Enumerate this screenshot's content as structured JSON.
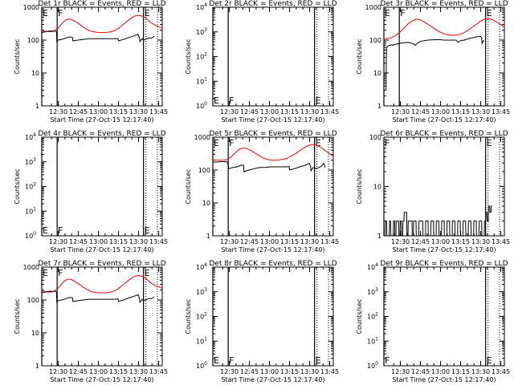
{
  "figure": {
    "xlabel": "Start Time (27-Oct-15 12:17:40)",
    "ylabel": "Counts/sec",
    "xticks": [
      "12:30",
      "12:45",
      "13:00",
      "13:15",
      "13:30",
      "13:45"
    ],
    "colors": {
      "events": "#000000",
      "lld": "#ff0000",
      "background": "#ffffff"
    }
  },
  "chart_data": [
    {
      "type": "line",
      "title": "Det 1r BLACK = Events, RED = LLD",
      "xrange_min": [
        0,
        90
      ],
      "ylim": [
        1,
        1000
      ],
      "yscale": "log",
      "yticks": [
        "1",
        "10",
        "100",
        "1000"
      ],
      "markers": [
        {
          "x": 0,
          "label": "E"
        },
        {
          "x": 11.5,
          "label": "F"
        },
        {
          "x": 76,
          "label": "E"
        }
      ],
      "events": {
        "x": [
          0,
          3,
          6,
          8,
          10,
          11,
          11.3,
          12,
          15,
          18,
          21,
          23,
          23.3,
          27,
          31,
          35,
          39,
          43,
          47,
          51,
          55,
          57,
          57.3,
          61,
          65,
          69,
          72,
          73,
          73.3,
          75,
          76,
          78,
          80,
          82,
          84
        ],
        "y": [
          170,
          180,
          190,
          185,
          190,
          180,
          85,
          100,
          105,
          115,
          125,
          120,
          95,
          100,
          105,
          110,
          110,
          110,
          110,
          110,
          110,
          112,
          95,
          105,
          120,
          135,
          150,
          115,
          90,
          110,
          100,
          108,
          115,
          115,
          130
        ]
      },
      "lld": {
        "x": [
          0,
          5,
          8,
          10,
          12,
          14,
          16,
          18,
          20,
          22,
          25,
          28,
          31,
          34,
          37,
          40,
          43,
          46,
          49,
          52,
          55,
          58,
          61,
          64,
          67,
          70,
          73,
          76,
          79,
          82,
          85,
          88,
          90
        ],
        "y": [
          190,
          180,
          180,
          200,
          230,
          280,
          350,
          410,
          440,
          430,
          370,
          310,
          250,
          210,
          185,
          175,
          170,
          170,
          172,
          180,
          200,
          240,
          300,
          380,
          470,
          550,
          560,
          520,
          420,
          330,
          280,
          250,
          230
        ]
      }
    },
    {
      "type": "line",
      "title": "Det 2r BLACK = Events, RED = LLD",
      "xrange_min": [
        0,
        90
      ],
      "ylim": [
        1,
        10000
      ],
      "yscale": "log",
      "yticks": [
        "10^0",
        "10^1",
        "10^2",
        "10^3",
        "10^4"
      ],
      "markers": [
        {
          "x": 0,
          "label": "E"
        },
        {
          "x": 11.5,
          "label": "F"
        },
        {
          "x": 76,
          "label": "E"
        }
      ]
    },
    {
      "type": "line",
      "title": "Det 3r BLACK = Events, RED = LLD",
      "xrange_min": [
        0,
        90
      ],
      "ylim": [
        1,
        1000
      ],
      "yscale": "log",
      "yticks": [
        "1",
        "10",
        "100",
        "1000"
      ],
      "markers": [
        {
          "x": 0,
          "label": "E"
        },
        {
          "x": 11.5,
          "label": "F"
        },
        {
          "x": 76,
          "label": "E"
        }
      ],
      "events": {
        "x": [
          1.6,
          1.8,
          2,
          3,
          4,
          5,
          6,
          6.5,
          8,
          10,
          12,
          14,
          16,
          18,
          20,
          22,
          23.3,
          25,
          27,
          30,
          33,
          36,
          39,
          42,
          45,
          48,
          51,
          54,
          55.3,
          57,
          60,
          63,
          66,
          69,
          72,
          73,
          73.3,
          74.5
        ],
        "y": [
          3,
          30,
          60,
          65,
          70,
          70,
          72,
          70,
          74,
          76,
          80,
          82,
          84,
          85,
          82,
          78,
          70,
          80,
          90,
          96,
          100,
          102,
          103,
          103,
          100,
          100,
          100,
          100,
          85,
          95,
          100,
          110,
          118,
          125,
          130,
          120,
          80,
          100
        ]
      },
      "lld": {
        "x": [
          0,
          3,
          6,
          9,
          12,
          15,
          18,
          21,
          24,
          27,
          30,
          33,
          36,
          39,
          42,
          45,
          48,
          51,
          54,
          57,
          60,
          63,
          66,
          69,
          72,
          75,
          78,
          81,
          84,
          87,
          90
        ],
        "y": [
          110,
          112,
          120,
          140,
          175,
          230,
          310,
          380,
          430,
          420,
          360,
          300,
          250,
          205,
          175,
          155,
          145,
          140,
          142,
          150,
          170,
          200,
          245,
          300,
          370,
          430,
          450,
          420,
          360,
          300,
          250
        ]
      }
    },
    {
      "type": "line",
      "title": "Det 4r BLACK = Events, RED = LLD",
      "xrange_min": [
        0,
        90
      ],
      "ylim": [
        1,
        10000
      ],
      "yscale": "log",
      "yticks": [
        "10^0",
        "10^1",
        "10^2",
        "10^3",
        "10^4"
      ],
      "markers": [
        {
          "x": 0,
          "label": "E"
        },
        {
          "x": 11.5,
          "label": "F"
        },
        {
          "x": 76,
          "label": "E"
        }
      ]
    },
    {
      "type": "line",
      "title": "Det 5r BLACK = Events, RED = LLD",
      "xrange_min": [
        0,
        90
      ],
      "ylim": [
        1,
        1000
      ],
      "yscale": "log",
      "yticks": [
        "1",
        "10",
        "100",
        "1000"
      ],
      "markers": [
        {
          "x": 0,
          "label": "E"
        },
        {
          "x": 11.5,
          "label": "F"
        },
        {
          "x": 76,
          "label": "E"
        }
      ],
      "events": {
        "x": [
          0,
          3,
          6,
          9,
          11,
          11.3,
          12,
          15,
          18,
          21,
          23,
          23.3,
          27,
          31,
          35,
          39,
          43,
          47,
          51,
          55,
          57,
          57.3,
          61,
          65,
          69,
          72,
          73,
          73.3,
          75,
          77,
          79,
          81,
          83,
          84
        ],
        "y": [
          175,
          175,
          180,
          180,
          175,
          150,
          110,
          120,
          125,
          140,
          140,
          90,
          100,
          110,
          120,
          120,
          125,
          125,
          125,
          125,
          128,
          100,
          110,
          125,
          140,
          160,
          130,
          95,
          120,
          110,
          118,
          130,
          160,
          120
        ]
      },
      "lld": {
        "x": [
          0,
          4,
          8,
          11,
          14,
          17,
          20,
          23,
          26,
          29,
          32,
          35,
          38,
          41,
          44,
          47,
          50,
          53,
          56,
          59,
          62,
          65,
          68,
          71,
          74,
          77,
          80,
          83,
          86,
          90
        ],
        "y": [
          205,
          200,
          198,
          210,
          260,
          340,
          430,
          470,
          440,
          380,
          320,
          270,
          230,
          210,
          200,
          200,
          205,
          215,
          235,
          270,
          320,
          390,
          470,
          550,
          600,
          580,
          510,
          420,
          340,
          260
        ]
      }
    },
    {
      "type": "line",
      "title": "Det 6r BLACK = Events, RED = LLD",
      "xrange_min": [
        0,
        90
      ],
      "ylim": [
        1,
        100
      ],
      "yscale": "log",
      "yticks": [
        "1",
        "10",
        "100"
      ],
      "markers": [
        {
          "x": 0,
          "label": "F"
        },
        {
          "x": 76,
          "label": "E"
        }
      ],
      "events": {
        "x": [
          0,
          1,
          1.2,
          2,
          2.2,
          4,
          4.2,
          5,
          5.2,
          7,
          7.2,
          8,
          8.2,
          9,
          9.2,
          11,
          11.2,
          12,
          12.2,
          13,
          13.2,
          14,
          14.2,
          15,
          15.2,
          17,
          17.2,
          18,
          18.2,
          21,
          21.2,
          22,
          22.2,
          24,
          24.2,
          26,
          26.2,
          29,
          29.2,
          31,
          31.2,
          33,
          33.2,
          35,
          35.2,
          37,
          37.2,
          39,
          39.2,
          41,
          41.2,
          43,
          43.2,
          45,
          45.2,
          47,
          47.2,
          49,
          49.2,
          51,
          51.2,
          53,
          53.2,
          55,
          55.2,
          57,
          57.2,
          59,
          59.2,
          61,
          61.2,
          63,
          63.2,
          65,
          65.2,
          67,
          67.2,
          69,
          69.2,
          71,
          71.2,
          73,
          73.2,
          75,
          75.2,
          76,
          76.2,
          77,
          77.2,
          78,
          78.2,
          79,
          79.2,
          80,
          80.2,
          81
        ],
        "y": [
          1,
          1,
          2,
          2,
          1,
          1,
          2,
          2,
          1,
          1,
          2,
          2,
          1,
          1,
          2,
          2,
          1,
          1,
          2,
          2,
          1,
          1,
          2,
          2,
          3,
          3,
          1,
          1,
          2,
          2,
          1,
          1,
          2,
          2,
          1,
          1,
          2,
          2,
          1,
          1,
          2,
          2,
          1,
          1,
          2,
          2,
          1,
          1,
          2,
          2,
          1,
          1,
          2,
          2,
          1,
          1,
          2,
          2,
          1,
          1,
          2,
          2,
          1,
          1,
          2,
          2,
          1,
          1,
          2,
          2,
          1,
          1,
          2,
          2,
          1,
          1,
          2,
          2,
          1,
          1,
          2,
          2,
          1,
          1,
          2,
          2,
          3,
          3,
          2,
          2,
          4,
          4,
          3,
          3,
          4,
          4
        ]
      }
    },
    {
      "type": "line",
      "title": "Det 7r BLACK = Events, RED = LLD",
      "xrange_min": [
        0,
        90
      ],
      "ylim": [
        1,
        1000
      ],
      "yscale": "log",
      "yticks": [
        "1",
        "10",
        "100",
        "1000"
      ],
      "markers": [
        {
          "x": 0,
          "label": "E"
        },
        {
          "x": 11.5,
          "label": "F"
        },
        {
          "x": 76,
          "label": "E"
        }
      ],
      "events": {
        "x": [
          0,
          3,
          6,
          8,
          10,
          11,
          11.3,
          12,
          15,
          18,
          21,
          23,
          23.3,
          27,
          31,
          35,
          39,
          43,
          47,
          51,
          55,
          57,
          57.3,
          61,
          65,
          69,
          72,
          73,
          73.3,
          75,
          76,
          78,
          80,
          82,
          84
        ],
        "y": [
          165,
          175,
          185,
          180,
          185,
          175,
          80,
          95,
          100,
          110,
          120,
          115,
          90,
          95,
          100,
          105,
          105,
          105,
          105,
          105,
          105,
          108,
          90,
          100,
          115,
          130,
          145,
          110,
          85,
          105,
          95,
          102,
          110,
          110,
          125
        ]
      },
      "lld": {
        "x": [
          0,
          5,
          8,
          10,
          12,
          14,
          16,
          18,
          20,
          22,
          25,
          28,
          31,
          34,
          37,
          40,
          43,
          46,
          49,
          52,
          55,
          58,
          61,
          64,
          67,
          70,
          73,
          76,
          79,
          82,
          85,
          88,
          90
        ],
        "y": [
          185,
          175,
          175,
          195,
          225,
          275,
          345,
          400,
          430,
          420,
          360,
          300,
          245,
          205,
          180,
          170,
          165,
          165,
          168,
          175,
          195,
          235,
          295,
          370,
          460,
          540,
          550,
          510,
          410,
          320,
          270,
          245,
          225
        ]
      }
    },
    {
      "type": "line",
      "title": "Det 8r BLACK = Events, RED = LLD",
      "xrange_min": [
        0,
        90
      ],
      "ylim": [
        1,
        10000
      ],
      "yscale": "log",
      "yticks": [
        "10^0",
        "10^1",
        "10^2",
        "10^3",
        "10^4"
      ],
      "markers": [
        {
          "x": 0,
          "label": "E"
        },
        {
          "x": 11.5,
          "label": "F"
        },
        {
          "x": 76,
          "label": "E"
        }
      ]
    },
    {
      "type": "line",
      "title": "Det 9r BLACK = Events, RED = LLD",
      "xrange_min": [
        0,
        90
      ],
      "ylim": [
        1,
        10000
      ],
      "yscale": "log",
      "yticks": [
        "10^0",
        "10^1",
        "10^2",
        "10^3",
        "10^4"
      ],
      "markers": [
        {
          "x": 0,
          "label": "F"
        },
        {
          "x": 76,
          "label": "E"
        }
      ]
    }
  ]
}
